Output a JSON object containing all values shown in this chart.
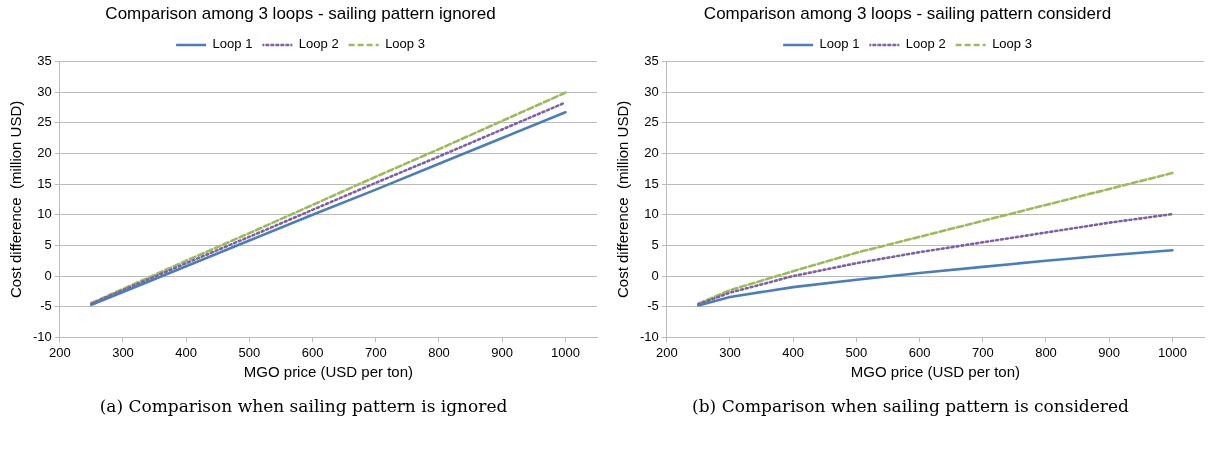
{
  "chart_data": [
    {
      "type": "line",
      "title": "Comparison among 3 loops - sailing pattern ignored",
      "xlabel": "MGO price (USD per ton)",
      "ylabel": "Cost difference  (million USD)",
      "x": [
        250,
        300,
        400,
        500,
        600,
        700,
        800,
        900,
        1000
      ],
      "xlim": [
        200,
        1050
      ],
      "xticks": [
        200,
        300,
        400,
        500,
        600,
        700,
        800,
        900,
        1000
      ],
      "ylim": [
        -10,
        35
      ],
      "yticks": [
        -10,
        -5,
        0,
        5,
        10,
        15,
        20,
        25,
        30,
        35
      ],
      "grid": "y",
      "legend": "top",
      "marker": "none",
      "annotations": [
        "(a) Comparison when sailing pattern is ignored"
      ],
      "series": [
        {
          "name": "Loop 1",
          "color": "#4a7ebb",
          "line_style": "solid",
          "values": [
            -4.7,
            -2.6,
            1.6,
            5.8,
            10.0,
            14.1,
            18.3,
            22.5,
            26.7
          ]
        },
        {
          "name": "Loop 2",
          "color": "#7f60a8",
          "line_style": "dotted",
          "values": [
            -4.5,
            -2.3,
            2.1,
            6.4,
            10.8,
            15.2,
            19.5,
            23.9,
            28.3
          ]
        },
        {
          "name": "Loop 3",
          "color": "#9bbb59",
          "line_style": "dashed",
          "values": [
            -4.4,
            -2.1,
            2.5,
            7.0,
            11.6,
            16.2,
            20.7,
            25.3,
            29.9
          ]
        }
      ]
    },
    {
      "type": "line",
      "title": "Comparison among 3 loops - sailing pattern considerd",
      "xlabel": "MGO price (USD per ton)",
      "ylabel": "Cost difference  (million USD)",
      "x": [
        250,
        300,
        400,
        500,
        600,
        700,
        800,
        900,
        1000
      ],
      "xlim": [
        200,
        1050
      ],
      "xticks": [
        200,
        300,
        400,
        500,
        600,
        700,
        800,
        900,
        1000
      ],
      "ylim": [
        -10,
        35
      ],
      "yticks": [
        -10,
        -5,
        0,
        5,
        10,
        15,
        20,
        25,
        30,
        35
      ],
      "grid": "y",
      "legend": "top",
      "marker": "none",
      "annotations": [
        "(b) Comparison when sailing pattern is considered"
      ],
      "series": [
        {
          "name": "Loop 1",
          "color": "#4a7ebb",
          "line_style": "solid",
          "values": [
            -4.8,
            -3.4,
            -1.8,
            -0.6,
            0.5,
            1.5,
            2.5,
            3.4,
            4.2
          ]
        },
        {
          "name": "Loop 2",
          "color": "#7f60a8",
          "line_style": "dotted",
          "values": [
            -4.6,
            -2.7,
            0.0,
            2.1,
            3.9,
            5.5,
            7.1,
            8.7,
            10.1
          ]
        },
        {
          "name": "Loop 3",
          "color": "#9bbb59",
          "line_style": "dashed",
          "values": [
            -4.5,
            -2.3,
            0.8,
            3.8,
            6.4,
            9.0,
            11.6,
            14.2,
            16.8
          ]
        }
      ]
    }
  ]
}
